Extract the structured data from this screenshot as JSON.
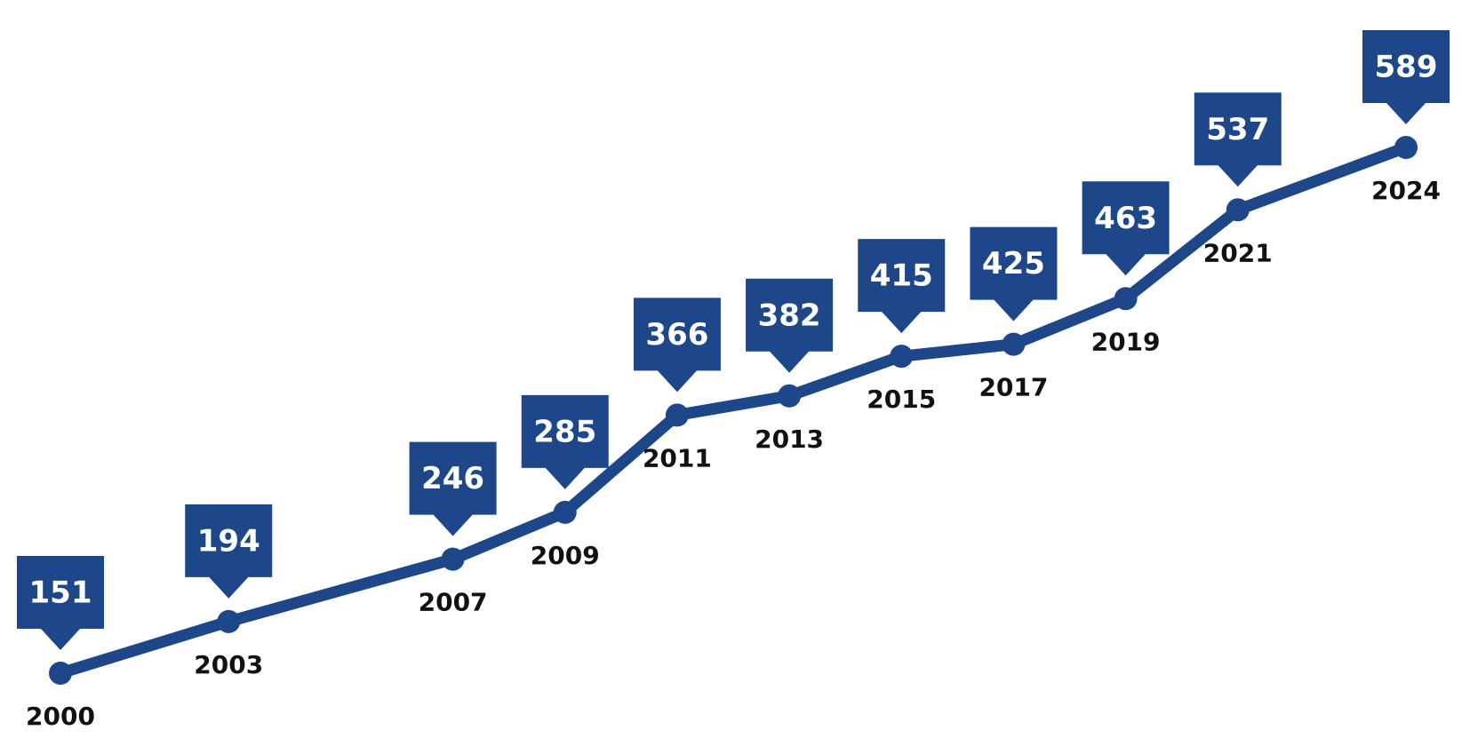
{
  "chart_data": {
    "type": "line",
    "x": [
      2000,
      2003,
      2007,
      2009,
      2011,
      2013,
      2015,
      2017,
      2019,
      2021,
      2024
    ],
    "values": [
      151,
      194,
      246,
      285,
      366,
      382,
      415,
      425,
      463,
      537,
      589
    ],
    "color": "#1d4789"
  }
}
